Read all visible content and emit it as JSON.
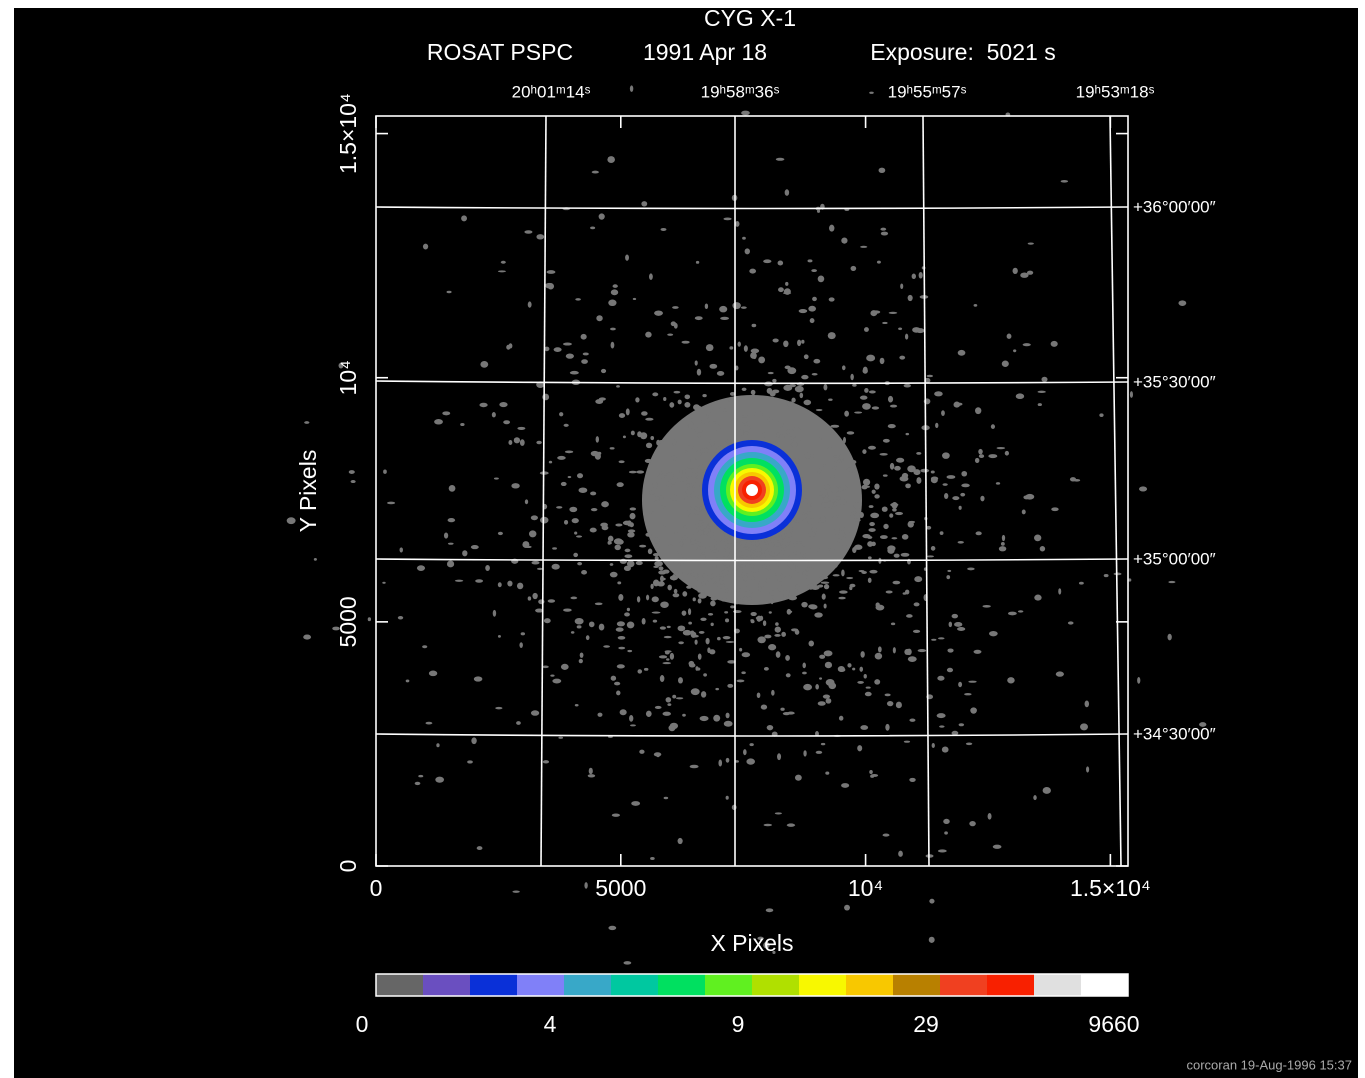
{
  "chart_data": {
    "type": "image",
    "title": "CYG X-1",
    "subtitle": [
      "ROSAT PSPC",
      "1991 Apr 18",
      "Exposure:  5021 s"
    ],
    "x_label": "X Pixels",
    "y_label": "Y Pixels",
    "xlim": [
      0,
      15360
    ],
    "ylim": [
      0,
      15360
    ],
    "xticks": [
      0,
      5000,
      {
        "value": 10000,
        "label": "10⁴"
      },
      {
        "value": 15000,
        "label": "1.5×10⁴"
      }
    ],
    "yticks": [
      0,
      5000,
      {
        "value": 10000,
        "label": "10⁴"
      },
      {
        "value": 15000,
        "label": "1.5×10⁴"
      }
    ],
    "ra_labels": [
      "20ʰ01ᵐ14ˢ",
      "19ʰ58ᵐ36ˢ",
      "19ʰ55ᵐ57ˢ",
      "19ʰ53ᵐ18ˢ"
    ],
    "dec_labels": [
      "+36°00′00″",
      "+35°30′00″",
      "+35°00′00″",
      "+34°30′00″"
    ],
    "colorbar": {
      "colors": [
        "#666666",
        "#6a4fc0",
        "#0a30d8",
        "#8080f8",
        "#38a8c8",
        "#00c8a0",
        "#00e060",
        "#60f020",
        "#b0e000",
        "#f8f800",
        "#f8c800",
        "#b88000",
        "#f04020",
        "#f82000",
        "#e0e0e0",
        "#ffffff"
      ],
      "labels": [
        0,
        4,
        9,
        29,
        9660
      ]
    },
    "footer": "corcoran 19-Aug-1996 15:37"
  }
}
